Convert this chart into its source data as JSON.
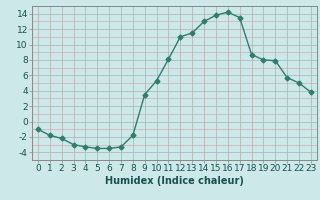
{
  "x": [
    0,
    1,
    2,
    3,
    4,
    5,
    6,
    7,
    8,
    9,
    10,
    11,
    12,
    13,
    14,
    15,
    16,
    17,
    18,
    19,
    20,
    21,
    22,
    23
  ],
  "y": [
    -1.0,
    -1.8,
    -2.2,
    -3.0,
    -3.3,
    -3.5,
    -3.5,
    -3.3,
    -1.8,
    3.5,
    5.3,
    8.1,
    11.0,
    11.5,
    13.0,
    13.8,
    14.2,
    13.5,
    8.7,
    8.0,
    7.9,
    5.7,
    5.0,
    3.8
  ],
  "line_color": "#2e7d6e",
  "marker": "D",
  "marker_size": 2.5,
  "bg_color": "#cce8e8",
  "xlabel": "Humidex (Indice chaleur)",
  "ylim": [
    -5,
    15
  ],
  "xlim": [
    -0.5,
    23.5
  ],
  "yticks": [
    -4,
    -2,
    0,
    2,
    4,
    6,
    8,
    10,
    12,
    14
  ],
  "xticks": [
    0,
    1,
    2,
    3,
    4,
    5,
    6,
    7,
    8,
    9,
    10,
    11,
    12,
    13,
    14,
    15,
    16,
    17,
    18,
    19,
    20,
    21,
    22,
    23
  ],
  "xlabel_fontsize": 7,
  "tick_fontsize": 6.5,
  "grid_major_color": "#b0b0b0",
  "grid_minor_color": "#d4a0a0",
  "spine_color": "#888888",
  "label_color": "#1a5050"
}
